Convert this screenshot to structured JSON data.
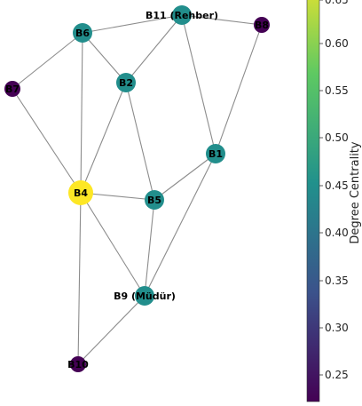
{
  "graph": {
    "nodes": [
      {
        "id": "B11",
        "label": "B11 (Rehber)",
        "centrality": 0.44
      },
      {
        "id": "B6",
        "label": "B6",
        "centrality": 0.44
      },
      {
        "id": "B8",
        "label": "B8",
        "centrality": 0.22
      },
      {
        "id": "B7",
        "label": "B7",
        "centrality": 0.22
      },
      {
        "id": "B2",
        "label": "B2",
        "centrality": 0.44
      },
      {
        "id": "B1",
        "label": "B1",
        "centrality": 0.44
      },
      {
        "id": "B4",
        "label": "B4",
        "centrality": 0.67
      },
      {
        "id": "B5",
        "label": "B5",
        "centrality": 0.44
      },
      {
        "id": "B9",
        "label": "B9 (Müdür)",
        "centrality": 0.44
      },
      {
        "id": "B10",
        "label": "B10",
        "centrality": 0.22
      }
    ],
    "edges": [
      [
        "B6",
        "B11"
      ],
      [
        "B11",
        "B8"
      ],
      [
        "B11",
        "B2"
      ],
      [
        "B11",
        "B1"
      ],
      [
        "B8",
        "B1"
      ],
      [
        "B6",
        "B2"
      ],
      [
        "B6",
        "B7"
      ],
      [
        "B6",
        "B4"
      ],
      [
        "B7",
        "B4"
      ],
      [
        "B2",
        "B4"
      ],
      [
        "B2",
        "B5"
      ],
      [
        "B4",
        "B5"
      ],
      [
        "B4",
        "B9"
      ],
      [
        "B4",
        "B10"
      ],
      [
        "B5",
        "B1"
      ],
      [
        "B5",
        "B9"
      ],
      [
        "B1",
        "B9"
      ],
      [
        "B9",
        "B10"
      ]
    ]
  },
  "colorbar": {
    "label": "Degree Centrality",
    "range": [
      0.22,
      0.67
    ],
    "ticks": [
      "0.25",
      "0.30",
      "0.35",
      "0.40",
      "0.45",
      "0.50",
      "0.55",
      "0.60",
      "0.65"
    ],
    "colormap": [
      "#440154",
      "#3b528b",
      "#21918c",
      "#5ec962",
      "#fde725"
    ]
  }
}
